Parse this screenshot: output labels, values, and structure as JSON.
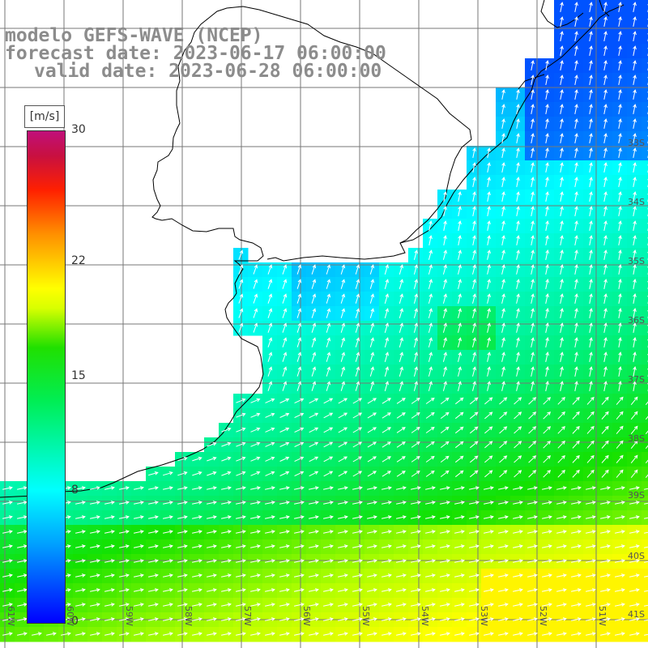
{
  "title": {
    "line1": "modelo GEFS-WAVE (NCEP)",
    "line2": "forecast date: 2023-06-17 06:00:00",
    "line3": "valid date: 2023-06-28 06:00:00"
  },
  "colorbar": {
    "units": "[m/s]",
    "ticks": [
      {
        "value": 30,
        "label": "30"
      },
      {
        "value": 22,
        "label": "22"
      },
      {
        "value": 15,
        "label": "15"
      },
      {
        "value": 8,
        "label": "8"
      },
      {
        "value": 0,
        "label": "0"
      }
    ],
    "min": 0,
    "max": 30
  },
  "axes": {
    "lat_labels": [
      "33S",
      "34S",
      "35S",
      "36S",
      "37S",
      "38S",
      "39S",
      "40S",
      "41S"
    ],
    "lon_labels": [
      "61W",
      "60W",
      "59W",
      "58W",
      "57W",
      "56W",
      "55W",
      "54W",
      "53W",
      "52W",
      "51W"
    ]
  },
  "colors": {
    "land": "#ffffff",
    "coast": "#000000",
    "grid": "#777777",
    "vector": "#ffffff",
    "title": "#8c8c8c"
  }
}
